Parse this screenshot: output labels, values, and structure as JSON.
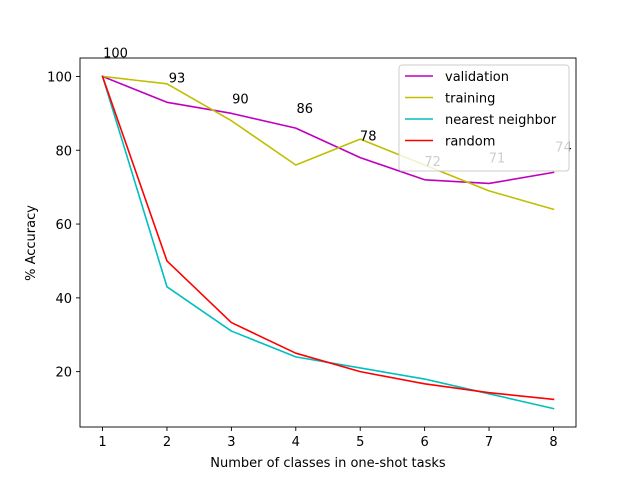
{
  "chart_data": {
    "type": "line",
    "xlabel": "Number of classes in one-shot tasks",
    "ylabel": "% Accuracy",
    "x": [
      1,
      2,
      3,
      4,
      5,
      6,
      7,
      8
    ],
    "xlim": [
      0.65,
      8.35
    ],
    "ylim": [
      5,
      105
    ],
    "x_ticks": [
      1,
      2,
      3,
      4,
      5,
      6,
      7,
      8
    ],
    "y_ticks": [
      20,
      40,
      60,
      80,
      100
    ],
    "grid": false,
    "legend_position": "top-right",
    "series": [
      {
        "name": "validation",
        "color": "#bf00bf",
        "values": [
          100,
          93,
          90,
          86,
          78,
          72,
          71,
          74
        ]
      },
      {
        "name": "training",
        "color": "#bfbf00",
        "values": [
          100,
          98,
          88,
          76,
          83,
          76,
          69,
          64
        ]
      },
      {
        "name": "nearest neighbor",
        "color": "#00bfbf",
        "values": [
          100,
          43,
          31,
          24,
          21,
          18,
          14,
          10
        ]
      },
      {
        "name": "random",
        "color": "#ff0000",
        "values": [
          100,
          50,
          33.3,
          25,
          20,
          16.7,
          14.3,
          12.5
        ]
      }
    ],
    "data_labels": {
      "series": "validation",
      "values": [
        100,
        93,
        90,
        86,
        78,
        72,
        71,
        74
      ]
    }
  }
}
